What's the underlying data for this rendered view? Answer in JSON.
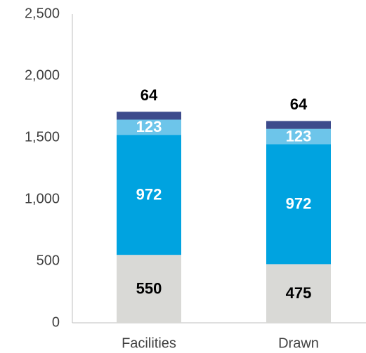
{
  "chart_data": {
    "type": "stacked_bar",
    "categories": [
      "Facilities",
      "Drawn"
    ],
    "series": [
      {
        "color": "#d9d9d6",
        "label_color": "#000000",
        "values": [
          550,
          475
        ]
      },
      {
        "color": "#00a3e0",
        "label_color": "#ffffff",
        "values": [
          972,
          972
        ]
      },
      {
        "color": "#6dc5ea",
        "label_color": "#ffffff",
        "values": [
          123,
          123
        ]
      },
      {
        "color": "#3d4b8c",
        "label_color": "#000000",
        "label_position": "above",
        "values": [
          64,
          64
        ]
      }
    ],
    "ylim": [
      0,
      2500
    ],
    "yticks": [
      0,
      500,
      {
        "value": 1000,
        "label": "1,000"
      },
      {
        "value": 1500,
        "label": "1,500"
      },
      {
        "value": 2000,
        "label": "2,000"
      },
      {
        "value": 2500,
        "label": "2,500"
      }
    ],
    "grid": false
  }
}
